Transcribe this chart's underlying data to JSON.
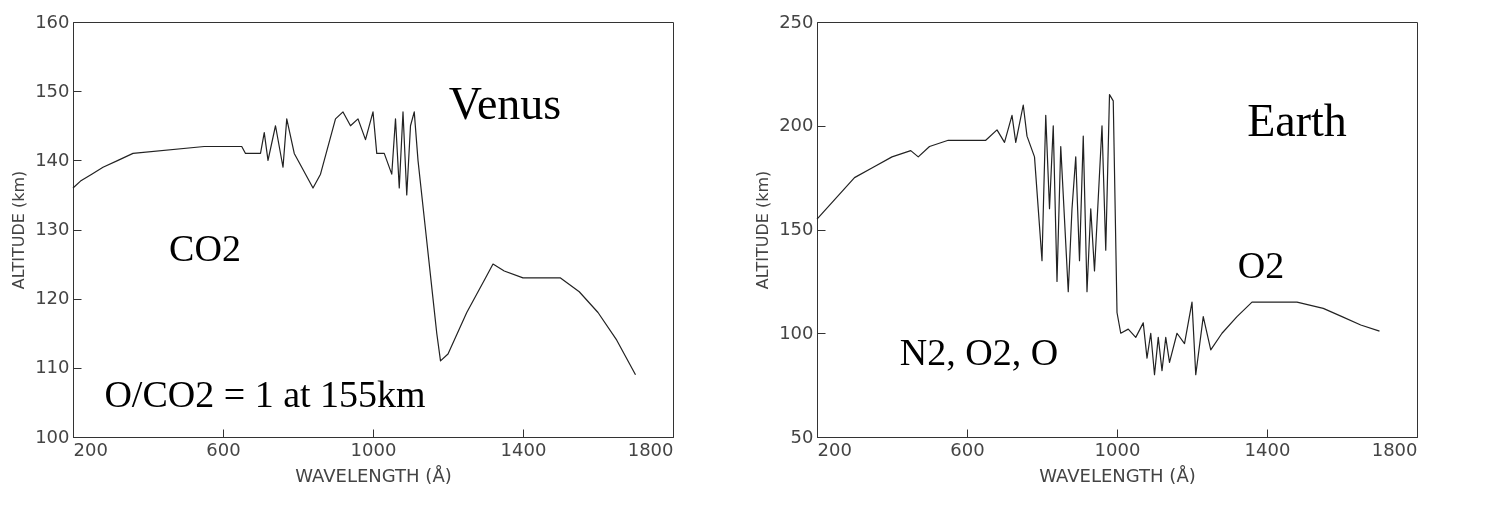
{
  "chart_data": [
    {
      "type": "line",
      "xlabel": "WAVELENGTH (Å)",
      "ylabel": "ALTITUDE (km)",
      "xlim": [
        200,
        1800
      ],
      "ylim": [
        100,
        160
      ],
      "xticks": [
        200,
        600,
        1000,
        1400,
        1800
      ],
      "yticks": [
        100,
        110,
        120,
        130,
        140,
        150,
        160
      ],
      "grid": false,
      "annotations": [
        "Venus",
        "CO2",
        "O/CO2 = 1 at 155km"
      ],
      "x": [
        200,
        220,
        250,
        280,
        320,
        360,
        550,
        650,
        660,
        700,
        710,
        720,
        740,
        760,
        770,
        790,
        810,
        840,
        860,
        900,
        920,
        940,
        960,
        980,
        1000,
        1010,
        1030,
        1050,
        1060,
        1070,
        1080,
        1090,
        1100,
        1110,
        1120,
        1140,
        1160,
        1170,
        1180,
        1200,
        1250,
        1300,
        1320,
        1350,
        1400,
        1500,
        1550,
        1600,
        1650,
        1700
      ],
      "series": [
        {
          "color": "#222222",
          "values": [
            136,
            137,
            138,
            139,
            140,
            141,
            142,
            142,
            141,
            141,
            144,
            140,
            145,
            139,
            146,
            141,
            139,
            136,
            138,
            146,
            147,
            145,
            146,
            143,
            147,
            141,
            141,
            138,
            146,
            136,
            147,
            135,
            145,
            147,
            140,
            130,
            120,
            115,
            111,
            112,
            118,
            123,
            125,
            124,
            123,
            123,
            121,
            118,
            114,
            109
          ]
        }
      ]
    },
    {
      "type": "line",
      "xlabel": "WAVELENGTH (Å)",
      "ylabel": "ALTITUDE (km)",
      "xlim": [
        200,
        1800
      ],
      "ylim": [
        50,
        250
      ],
      "xticks": [
        200,
        600,
        1000,
        1400,
        1800
      ],
      "yticks": [
        50,
        100,
        150,
        200,
        250
      ],
      "grid": false,
      "annotations": [
        "Earth",
        "O2",
        "N2, O2, O"
      ],
      "x": [
        200,
        250,
        300,
        350,
        400,
        450,
        470,
        500,
        550,
        650,
        680,
        700,
        720,
        730,
        750,
        760,
        780,
        800,
        810,
        820,
        830,
        840,
        850,
        870,
        880,
        890,
        900,
        910,
        920,
        930,
        940,
        960,
        970,
        980,
        990,
        1000,
        1010,
        1030,
        1050,
        1070,
        1080,
        1090,
        1100,
        1110,
        1120,
        1130,
        1140,
        1160,
        1180,
        1200,
        1210,
        1230,
        1250,
        1280,
        1320,
        1360,
        1480,
        1550,
        1600,
        1650,
        1700
      ],
      "series": [
        {
          "color": "#222222",
          "values": [
            155,
            165,
            175,
            180,
            185,
            188,
            185,
            190,
            193,
            193,
            198,
            192,
            205,
            192,
            210,
            195,
            185,
            135,
            205,
            160,
            200,
            125,
            190,
            120,
            160,
            185,
            135,
            195,
            120,
            160,
            130,
            200,
            140,
            215,
            212,
            110,
            100,
            102,
            98,
            105,
            88,
            100,
            80,
            98,
            82,
            98,
            86,
            100,
            95,
            115,
            80,
            108,
            92,
            100,
            108,
            115,
            115,
            112,
            108,
            104,
            101
          ]
        }
      ]
    }
  ]
}
